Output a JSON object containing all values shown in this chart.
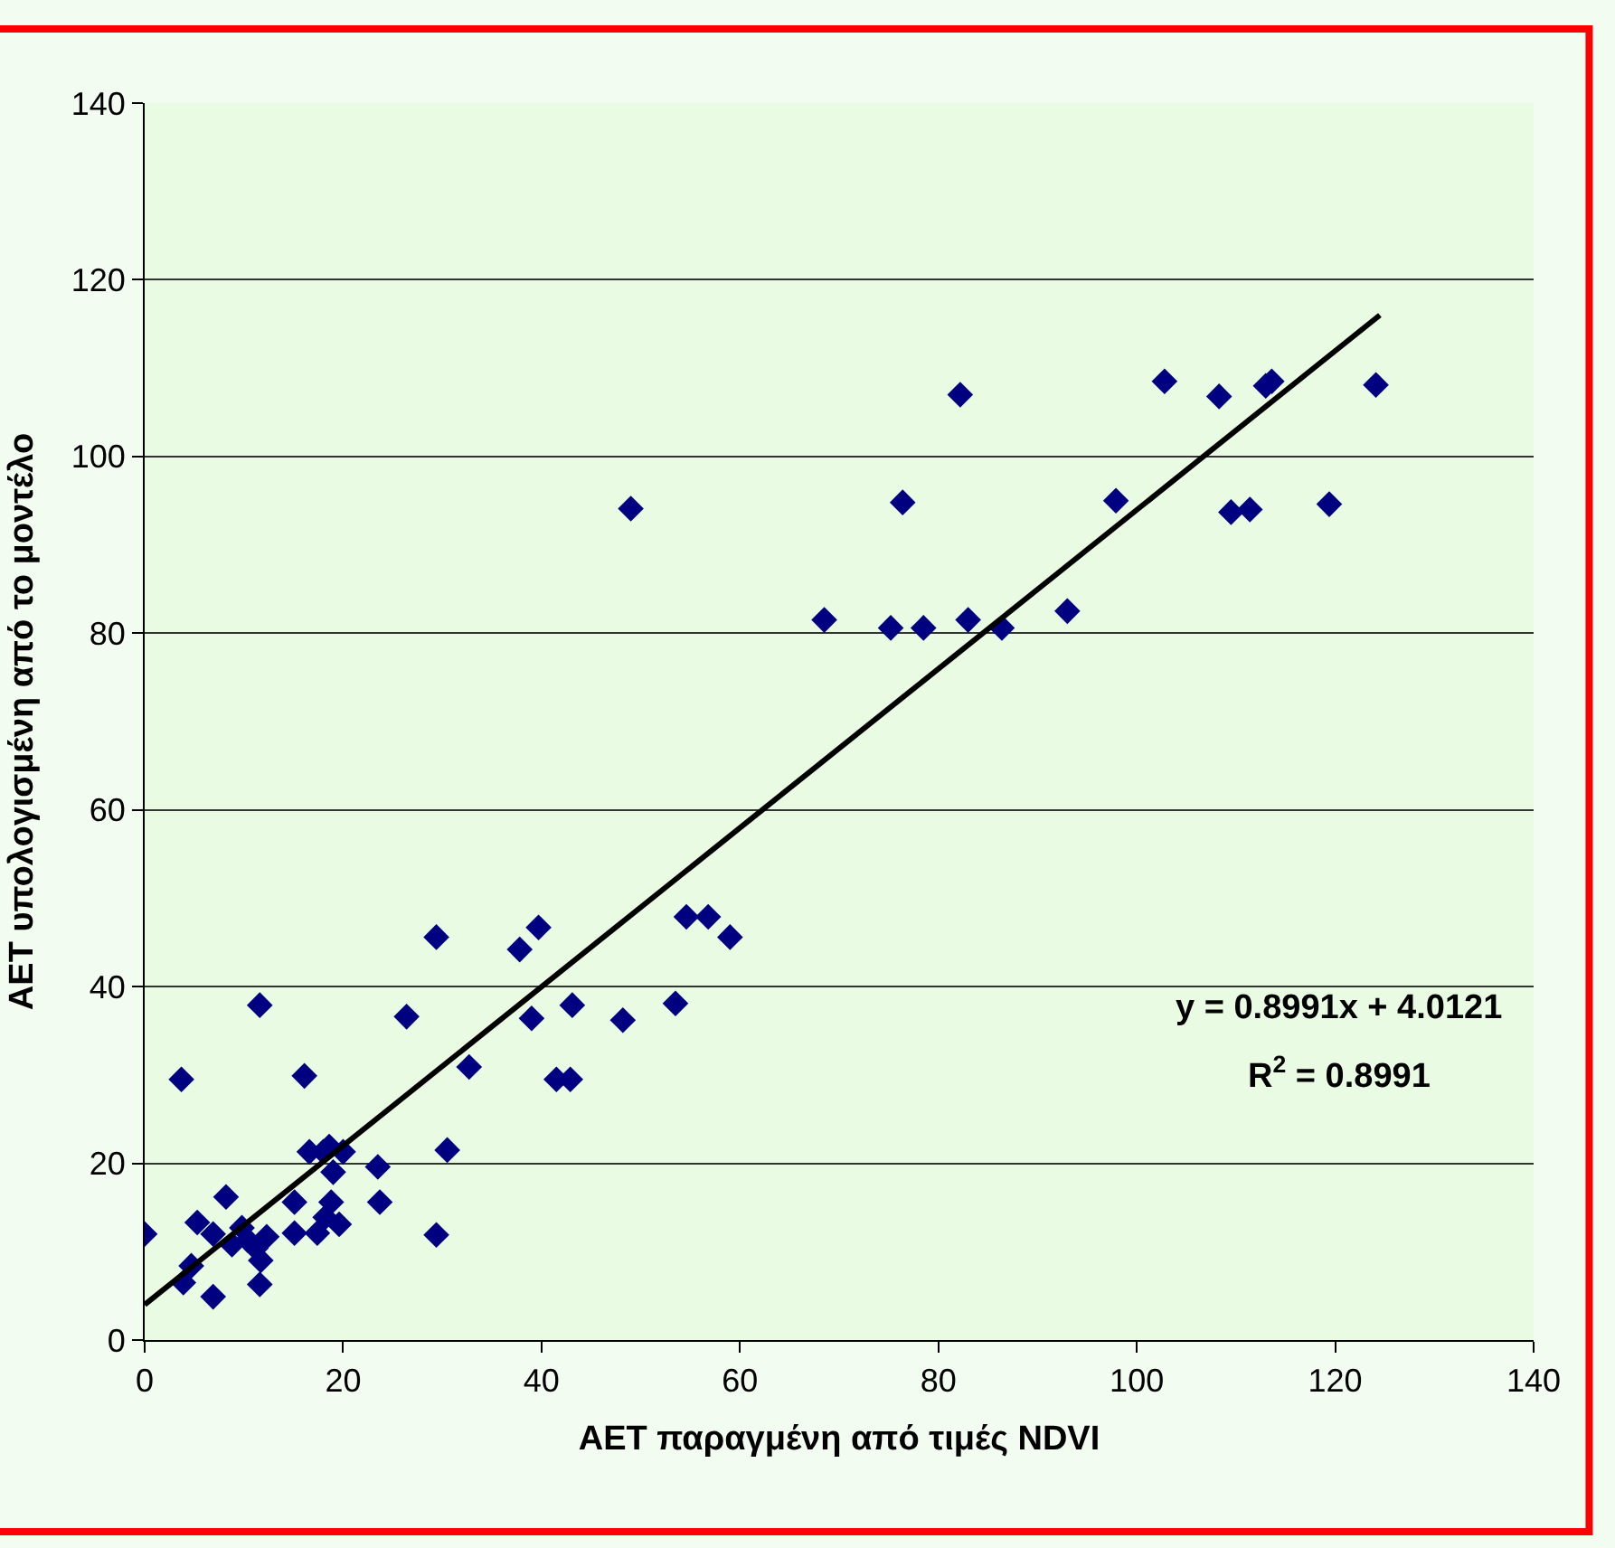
{
  "chart_data": {
    "type": "scatter",
    "xlabel": "AET παραγμένη από τιμές NDVI",
    "ylabel": "AET υπολογισμένη από το μοντέλο",
    "xlim": [
      0,
      140
    ],
    "ylim": [
      0,
      140
    ],
    "xticks": [
      0,
      20,
      40,
      60,
      80,
      100,
      120,
      140
    ],
    "yticks": [
      0,
      20,
      40,
      60,
      80,
      100,
      120,
      140
    ],
    "grid": "y",
    "legend": false,
    "marker": "diamond",
    "series": [
      {
        "color": "#000080",
        "x": [
          0,
          3.7,
          3.9,
          4.7,
          5.3,
          6.9,
          6.9,
          8.2,
          8.8,
          9.8,
          10.4,
          11.2,
          11.6,
          11.6,
          11.7,
          12.3,
          15.1,
          15.1,
          16.1,
          16.6,
          17.4,
          18,
          18.2,
          18.6,
          18.8,
          19,
          19.6,
          20,
          23.5,
          23.7,
          26.4,
          29.4,
          29.4,
          30.5,
          32.7,
          37.8,
          39,
          39.7,
          41.5,
          42.9,
          43.1,
          48.2,
          49,
          53.5,
          54.6,
          56.8,
          59,
          68.5,
          75.2,
          76.4,
          78.5,
          82.2,
          83,
          86.4,
          93,
          97.9,
          102.8,
          108.3,
          109.5,
          111.4,
          113,
          113.6,
          119.4,
          124.1
        ],
        "values": [
          12,
          29.5,
          6.5,
          8.4,
          13.3,
          4.9,
          12,
          16.2,
          10.8,
          12.7,
          11.3,
          10.4,
          37.9,
          6.3,
          9,
          11.7,
          15.6,
          12.1,
          29.9,
          21.3,
          12.1,
          21.3,
          13.9,
          21.9,
          15.6,
          19,
          13.1,
          21.3,
          19.6,
          15.6,
          36.6,
          45.6,
          11.9,
          21.5,
          30.9,
          44.2,
          36.4,
          46.7,
          29.5,
          29.5,
          37.9,
          36.2,
          94.1,
          38.1,
          47.9,
          47.9,
          45.6,
          81.5,
          80.6,
          94.8,
          80.6,
          107,
          81.5,
          80.6,
          82.5,
          95,
          108.5,
          106.8,
          93.7,
          94,
          108,
          108.5,
          94.6,
          108.1
        ]
      },
      {
        "type": "line",
        "color": "#000000",
        "marker": "none",
        "line_style": "solid",
        "x": [
          0,
          124.5
        ],
        "values": [
          4.0,
          116.0
        ]
      }
    ],
    "annotations": [
      "y = 0.8991x + 4.0121",
      "R$^{2}$ = 0.8991"
    ]
  }
}
